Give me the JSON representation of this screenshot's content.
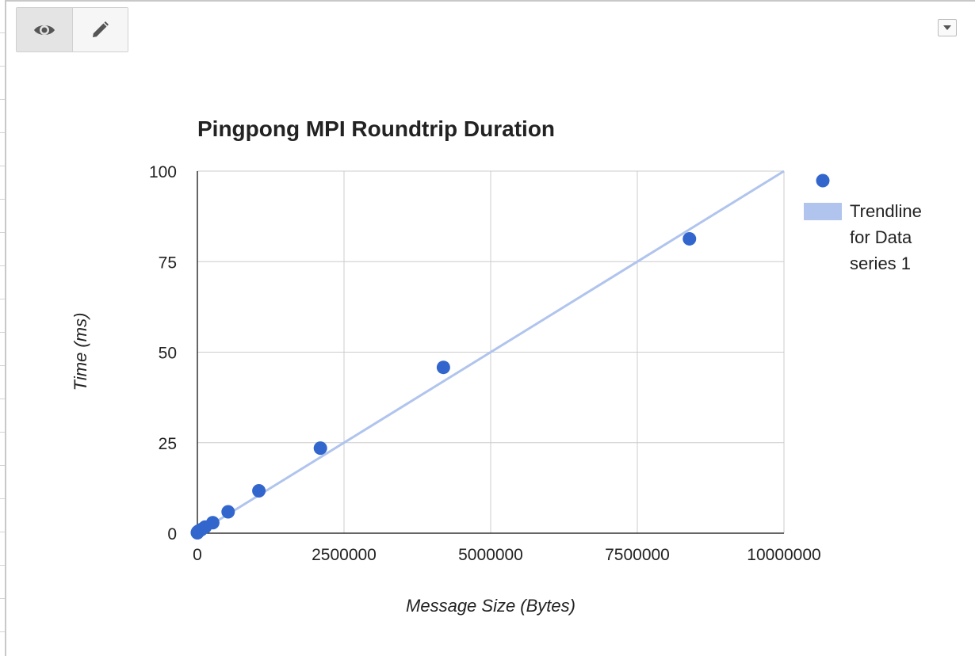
{
  "toolbar": {
    "view_icon": "eye-icon",
    "edit_icon": "pencil-icon",
    "menu_icon": "dropdown-arrow-icon"
  },
  "colors": {
    "point": "#3366cc",
    "trendline": "#b0c4ee",
    "grid": "#cccccc",
    "axis": "#333333",
    "text": "#222222"
  },
  "chart_data": {
    "type": "scatter",
    "title": "Pingpong MPI Roundtrip Duration",
    "xlabel": "Message Size (Bytes)",
    "ylabel": "Time (ms)",
    "xlim": [
      0,
      10000000
    ],
    "ylim": [
      0,
      100
    ],
    "x_ticks": [
      "0",
      "2500000",
      "5000000",
      "7500000",
      "10000000"
    ],
    "y_ticks": [
      "0",
      "25",
      "50",
      "75",
      "100"
    ],
    "grid": true,
    "legend_position": "right",
    "series": [
      {
        "x": [
          1,
          1024,
          4096,
          8192,
          16384,
          32768,
          65536,
          131072,
          262144,
          524288,
          1048576,
          2097152,
          4194304,
          8388608
        ],
        "y": [
          0.1,
          0.2,
          0.3,
          0.4,
          0.5,
          0.7,
          1.0,
          1.7,
          2.9,
          5.9,
          11.7,
          23.5,
          45.8,
          81.3
        ]
      }
    ],
    "trendline": {
      "name": "Trendline for Data series 1",
      "label_lines": [
        "Trendline",
        "for Data",
        "series 1"
      ],
      "x": [
        0,
        10000000
      ],
      "y": [
        0,
        100
      ]
    }
  }
}
